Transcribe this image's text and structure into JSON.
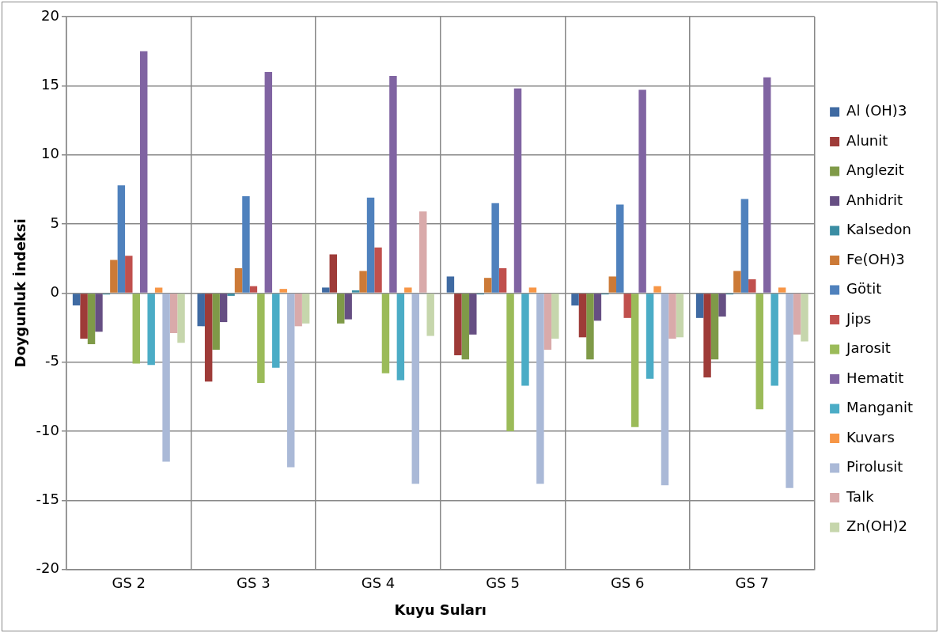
{
  "chart_data": {
    "type": "bar",
    "xlabel": "Kuyu Suları",
    "ylabel": "Doygunluk İndeksi",
    "categories": [
      "GS 2",
      "GS 3",
      "GS 4",
      "GS 5",
      "GS 6",
      "GS 7"
    ],
    "ylim": [
      -20,
      20
    ],
    "yticks": [
      -20,
      -15,
      -10,
      -5,
      0,
      5,
      10,
      15,
      20
    ],
    "grid": true,
    "legend": "right",
    "series": [
      {
        "name": "Al (OH)3",
        "color": "#3f6aa2",
        "values": [
          -0.9,
          -2.4,
          0.4,
          1.2,
          -0.9,
          -1.8
        ]
      },
      {
        "name": "Alunit",
        "color": "#9e3b38",
        "values": [
          -3.3,
          -6.4,
          2.8,
          -4.5,
          -3.2,
          -6.1
        ]
      },
      {
        "name": "Anglezit",
        "color": "#7f9a48",
        "values": [
          -3.7,
          -4.1,
          -2.2,
          -4.8,
          -4.8,
          -4.8
        ]
      },
      {
        "name": "Anhidrit",
        "color": "#664f83",
        "values": [
          -2.8,
          -2.1,
          -1.9,
          -3.0,
          -2.0,
          -1.7
        ]
      },
      {
        "name": "Kalsedon",
        "color": "#3a8da3",
        "values": [
          -0.1,
          -0.2,
          0.2,
          -0.1,
          -0.1,
          -0.1
        ]
      },
      {
        "name": "Fe(OH)3",
        "color": "#cc7a37",
        "values": [
          2.4,
          1.8,
          1.6,
          1.1,
          1.2,
          1.6
        ]
      },
      {
        "name": "Götit",
        "color": "#4f81bd",
        "values": [
          7.8,
          7.0,
          6.9,
          6.5,
          6.4,
          6.8
        ]
      },
      {
        "name": "Jips",
        "color": "#c0504d",
        "values": [
          2.7,
          0.5,
          3.3,
          1.8,
          -1.8,
          1.0
        ]
      },
      {
        "name": "Jarosit",
        "color": "#9bbb59",
        "values": [
          -5.1,
          -6.5,
          -5.8,
          -10.0,
          -9.7,
          -8.4
        ]
      },
      {
        "name": "Hematit",
        "color": "#8064a2",
        "values": [
          17.5,
          16.0,
          15.7,
          14.8,
          14.7,
          15.6
        ]
      },
      {
        "name": "Manganit",
        "color": "#4bacc6",
        "values": [
          -5.2,
          -5.4,
          -6.3,
          -6.7,
          -6.2,
          -6.7
        ]
      },
      {
        "name": "Kuvars",
        "color": "#f79646",
        "values": [
          0.4,
          0.3,
          0.4,
          0.4,
          0.5,
          0.4
        ]
      },
      {
        "name": "Pirolusit",
        "color": "#aab9d7",
        "values": [
          -12.2,
          -12.6,
          -13.8,
          -13.8,
          -13.9,
          -14.1
        ]
      },
      {
        "name": "Talk",
        "color": "#d9aaaa",
        "values": [
          -2.9,
          -2.4,
          5.9,
          -4.1,
          -3.3,
          -3.0
        ]
      },
      {
        "name": "Zn(OH)2",
        "color": "#c6d6ac",
        "values": [
          -3.6,
          -2.2,
          -3.1,
          -3.3,
          -3.2,
          -3.5
        ]
      }
    ]
  }
}
